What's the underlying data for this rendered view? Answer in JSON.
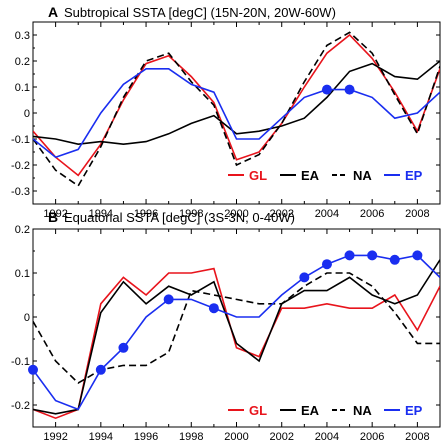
{
  "chart_data": [
    {
      "type": "line",
      "panel_letter": "A",
      "title": "Subtropical SSTA [degC] (15N-20N, 20W-60W)",
      "xlim": [
        1991,
        2009
      ],
      "ylim": [
        -0.35,
        0.35
      ],
      "x_ticks": [
        "1992",
        "1994",
        "1996",
        "1998",
        "2000",
        "2002",
        "2004",
        "2006",
        "2008"
      ],
      "y_ticks": [
        "0.3",
        "0.2",
        "0.1",
        "0",
        "-0.1",
        "-0.2",
        "-0.3"
      ],
      "x": [
        1991,
        1992,
        1993,
        1994,
        1995,
        1996,
        1997,
        1998,
        1999,
        2000,
        2001,
        2002,
        2003,
        2004,
        2005,
        2006,
        2007,
        2008,
        2009
      ],
      "series": [
        {
          "name": "GL",
          "color": "#e8141c",
          "style": "solid",
          "values": [
            -0.07,
            -0.17,
            -0.24,
            -0.12,
            0.05,
            0.19,
            0.22,
            0.14,
            0.04,
            -0.18,
            -0.15,
            -0.04,
            0.1,
            0.23,
            0.3,
            0.21,
            0.08,
            -0.07,
            0.17
          ]
        },
        {
          "name": "EA",
          "color": "#000000",
          "style": "solid",
          "values": [
            -0.09,
            -0.1,
            -0.12,
            -0.11,
            -0.12,
            -0.11,
            -0.08,
            -0.04,
            -0.01,
            -0.08,
            -0.07,
            -0.05,
            -0.02,
            0.06,
            0.16,
            0.19,
            0.14,
            0.13,
            0.2
          ]
        },
        {
          "name": "NA",
          "color": "#000000",
          "style": "dashed",
          "values": [
            -0.1,
            -0.22,
            -0.28,
            -0.13,
            0.06,
            0.2,
            0.23,
            0.12,
            0.03,
            -0.2,
            -0.16,
            -0.04,
            0.12,
            0.26,
            0.31,
            0.23,
            0.07,
            -0.08,
            0.18
          ]
        },
        {
          "name": "EP",
          "color": "#1a2ef0",
          "style": "solid",
          "values": [
            -0.1,
            -0.17,
            -0.14,
            0.0,
            0.11,
            0.17,
            0.17,
            0.11,
            0.08,
            -0.1,
            -0.1,
            -0.02,
            0.06,
            0.09,
            0.09,
            0.06,
            -0.02,
            0.0,
            0.08
          ],
          "markers_at": [
            2004,
            2005
          ]
        }
      ]
    },
    {
      "type": "line",
      "panel_letter": "B",
      "title": "Equatorial SSTA [degC] (3S-3N, 0-40W)",
      "xlim": [
        1991,
        2009
      ],
      "ylim": [
        -0.25,
        0.2
      ],
      "x_ticks": [
        "1992",
        "1994",
        "1996",
        "1998",
        "2000",
        "2002",
        "2004",
        "2006",
        "2008"
      ],
      "y_ticks": [
        "0.2",
        "0.1",
        "0",
        "-0.1",
        "-0.2"
      ],
      "x": [
        1991,
        1992,
        1993,
        1994,
        1995,
        1996,
        1997,
        1998,
        1999,
        2000,
        2001,
        2002,
        2003,
        2004,
        2005,
        2006,
        2007,
        2008,
        2009
      ],
      "series": [
        {
          "name": "GL",
          "color": "#e8141c",
          "style": "solid",
          "values": [
            -0.21,
            -0.23,
            -0.21,
            0.03,
            0.09,
            0.05,
            0.1,
            0.1,
            0.11,
            -0.07,
            -0.09,
            0.02,
            0.02,
            0.03,
            0.02,
            0.02,
            0.05,
            -0.03,
            0.07
          ]
        },
        {
          "name": "EA",
          "color": "#000000",
          "style": "solid",
          "values": [
            -0.21,
            -0.22,
            -0.21,
            0.01,
            0.08,
            0.03,
            0.07,
            0.05,
            0.08,
            -0.06,
            -0.1,
            0.03,
            0.06,
            0.06,
            0.09,
            0.05,
            0.03,
            0.05,
            0.13
          ]
        },
        {
          "name": "NA",
          "color": "#000000",
          "style": "dashed",
          "values": [
            -0.01,
            -0.1,
            -0.15,
            -0.12,
            -0.11,
            -0.11,
            -0.08,
            0.06,
            0.05,
            0.04,
            0.03,
            0.03,
            0.07,
            0.1,
            0.1,
            0.07,
            0.01,
            -0.06,
            -0.06
          ]
        },
        {
          "name": "EP",
          "color": "#1a2ef0",
          "style": "solid",
          "values": [
            -0.12,
            -0.19,
            -0.21,
            -0.12,
            -0.07,
            0.0,
            0.04,
            0.04,
            0.02,
            0.0,
            0.0,
            0.05,
            0.09,
            0.12,
            0.14,
            0.14,
            0.13,
            0.14,
            0.09
          ],
          "markers_at": [
            1991,
            1994,
            1995,
            1997,
            1999,
            2003,
            2004,
            2005,
            2006,
            2007,
            2008
          ]
        }
      ]
    }
  ],
  "legend": [
    {
      "label": "GL",
      "color": "#e8141c",
      "style": "solid"
    },
    {
      "label": "EA",
      "color": "#000000",
      "style": "solid"
    },
    {
      "label": "NA",
      "color": "#000000",
      "style": "dashed"
    },
    {
      "label": "EP",
      "color": "#1a2ef0",
      "style": "solid"
    }
  ]
}
